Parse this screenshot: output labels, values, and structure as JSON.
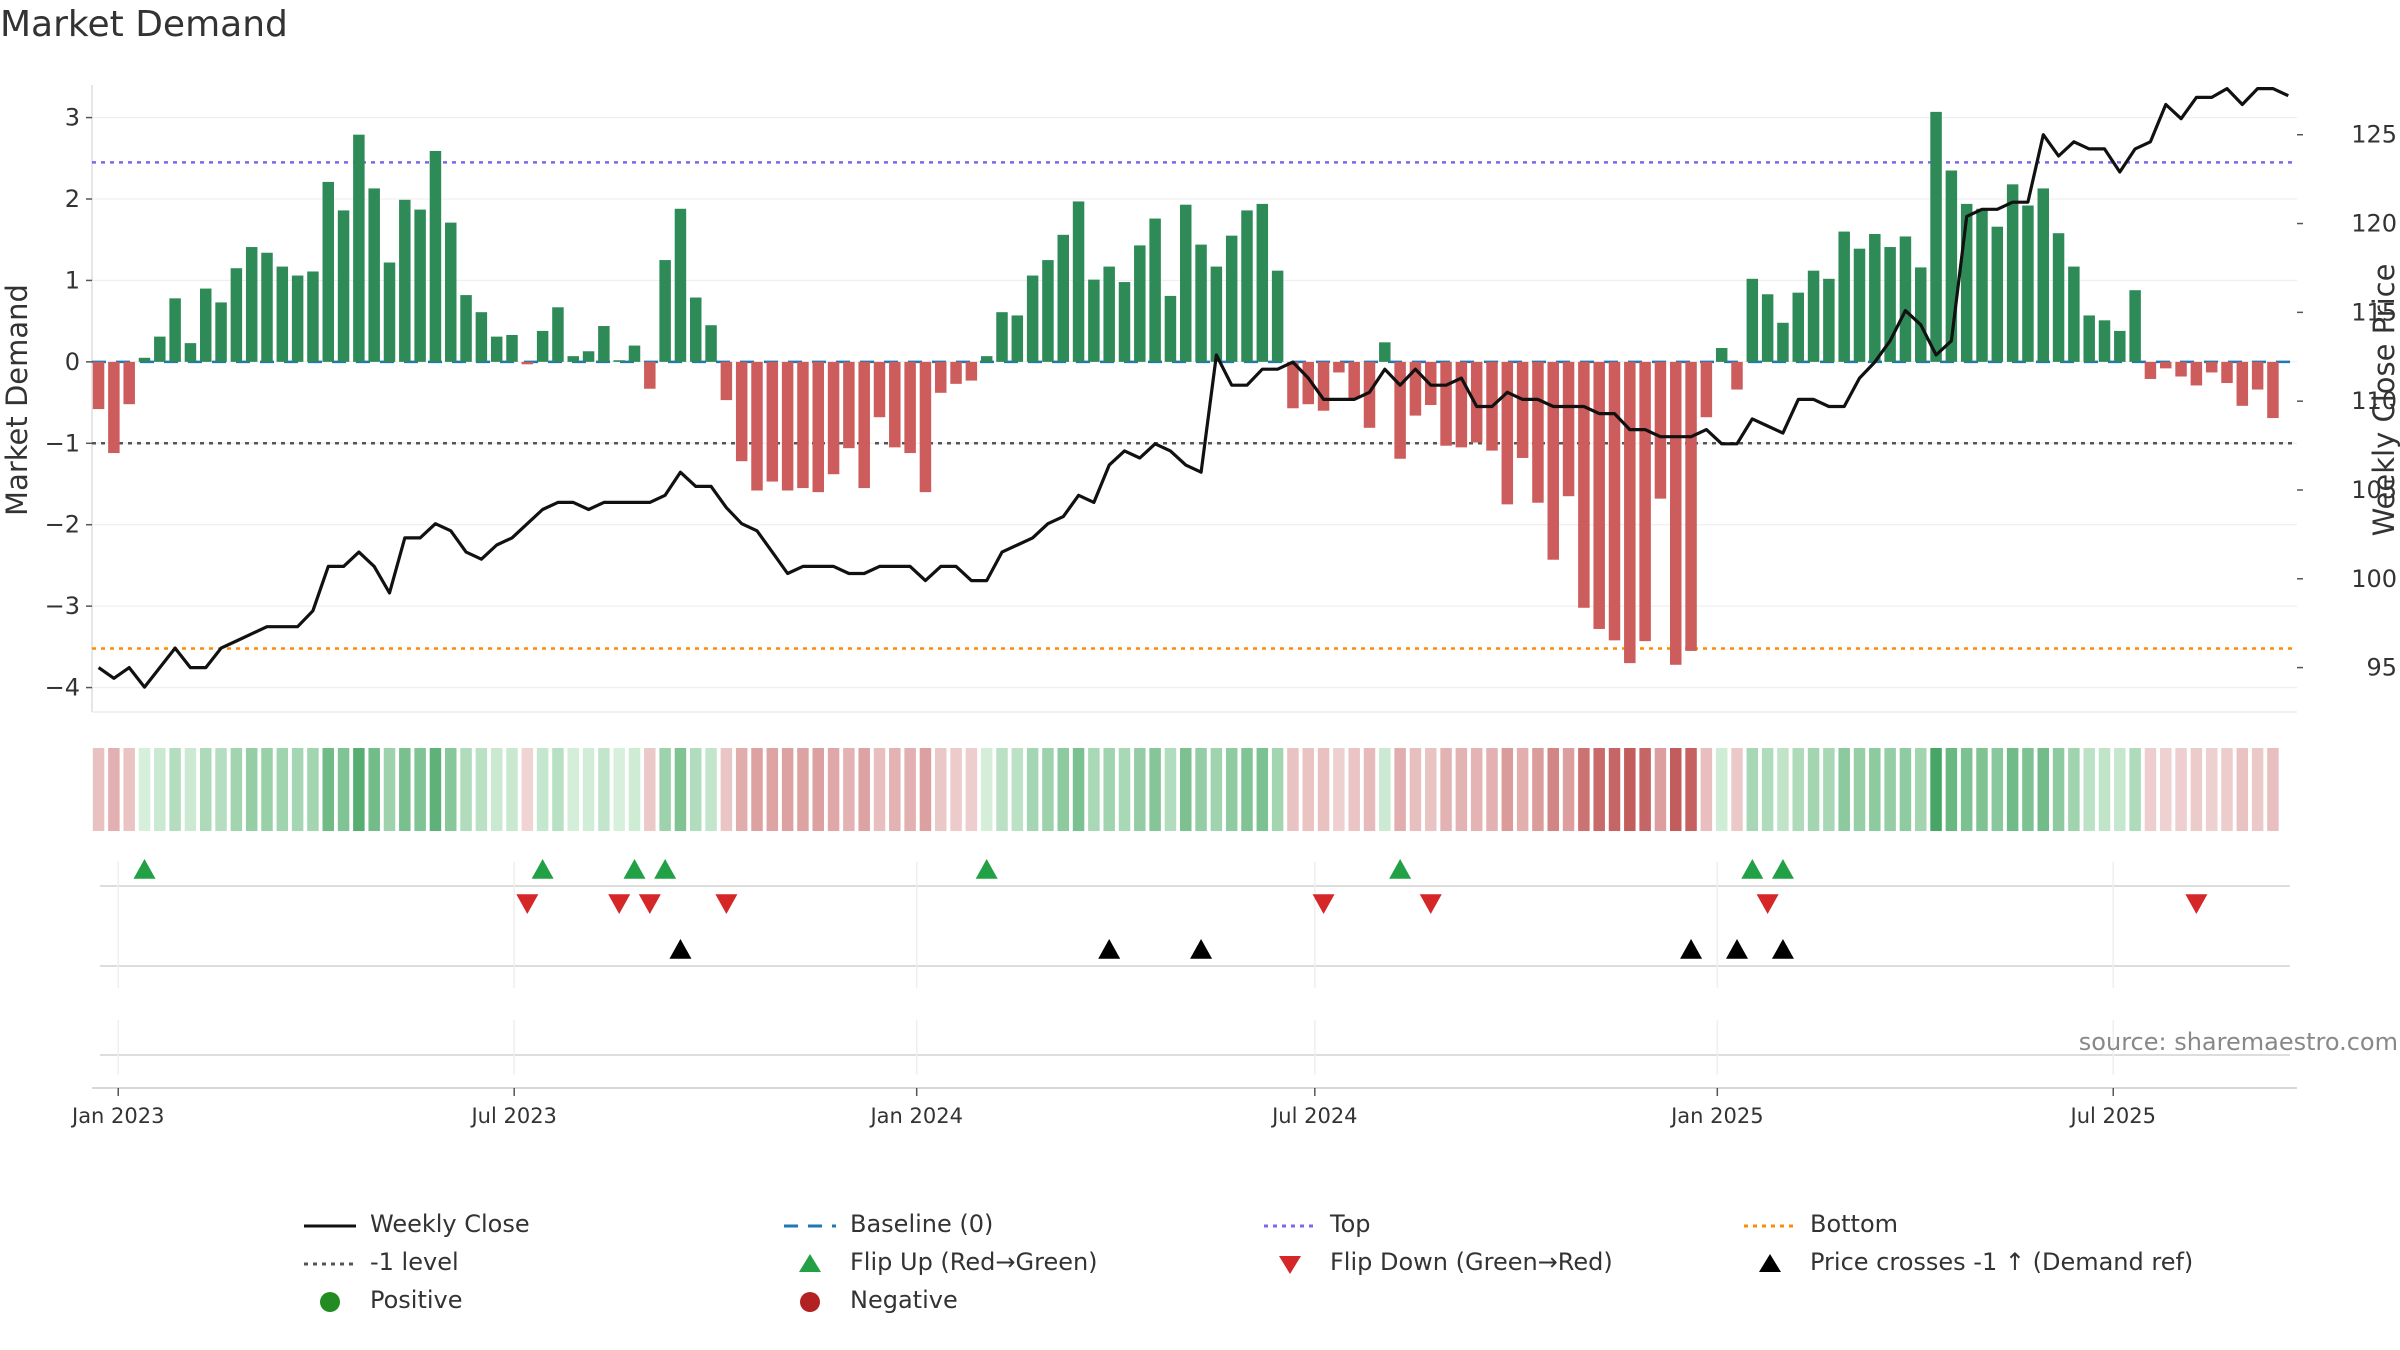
{
  "title": "Market Demand",
  "source": "source: sharemaestro.com",
  "colors": {
    "positive": "#2e8b57",
    "negative": "#cd5c5c",
    "price": "#111111",
    "baseline": "#1f77b4",
    "top": "#7b68ee",
    "bottom": "#ff8c00",
    "minus1": "#555555",
    "flip_up": "#22a046",
    "flip_down": "#d62728",
    "cross": "#000000"
  },
  "chart_data": {
    "type": "bar+line",
    "ylabel_left": "Market Demand",
    "ylabel_right": "Weekly Close Price",
    "left_ylim": [
      -4.3,
      3.4
    ],
    "left_ticks": [
      3,
      2,
      1,
      0,
      -1,
      -2,
      -3,
      -4
    ],
    "left_tick_labels": [
      "3",
      "2",
      "1",
      "0",
      "−1",
      "−2",
      "−3",
      "−4"
    ],
    "right_ylim": [
      92.5,
      127.8
    ],
    "right_ticks": [
      125,
      120,
      115,
      110,
      105,
      100,
      95
    ],
    "x_start": "2022-12-23",
    "week_days": 7,
    "x_ticks": [
      {
        "label": "Jan 2023",
        "day": 9
      },
      {
        "label": "Jul 2023",
        "day": 190
      },
      {
        "label": "Jan 2024",
        "day": 374
      },
      {
        "label": "Jul 2024",
        "day": 556
      },
      {
        "label": "Jan 2025",
        "day": 740
      },
      {
        "label": "Jul 2025",
        "day": 921
      }
    ],
    "reference_levels": {
      "top": 2.45,
      "bottom": -3.52,
      "baseline": 0,
      "minus1": -1
    },
    "demand": [
      -0.58,
      -1.12,
      -0.52,
      0.05,
      0.31,
      0.78,
      0.23,
      0.9,
      0.73,
      1.15,
      1.41,
      1.34,
      1.17,
      1.06,
      1.11,
      2.21,
      1.86,
      2.79,
      2.13,
      1.22,
      1.99,
      1.87,
      2.59,
      1.71,
      0.82,
      0.61,
      0.31,
      0.33,
      -0.03,
      0.38,
      0.67,
      0.07,
      0.13,
      0.44,
      0.02,
      0.2,
      -0.33,
      1.25,
      1.88,
      0.79,
      0.45,
      -0.47,
      -1.22,
      -1.58,
      -1.47,
      -1.58,
      -1.55,
      -1.6,
      -1.38,
      -1.06,
      -1.55,
      -0.68,
      -1.05,
      -1.12,
      -1.6,
      -0.38,
      -0.27,
      -0.23,
      0.07,
      0.61,
      0.57,
      1.06,
      1.25,
      1.56,
      1.97,
      1.01,
      1.17,
      0.98,
      1.43,
      1.76,
      0.81,
      1.93,
      1.44,
      1.17,
      1.55,
      1.86,
      1.94,
      1.12,
      -0.57,
      -0.52,
      -0.6,
      -0.13,
      -0.45,
      -0.81,
      0.24,
      -1.19,
      -0.66,
      -0.53,
      -1.03,
      -1.05,
      -0.99,
      -1.09,
      -1.75,
      -1.18,
      -1.73,
      -2.43,
      -1.65,
      -3.02,
      -3.28,
      -3.42,
      -3.7,
      -3.43,
      -1.68,
      -3.72,
      -3.55,
      -0.68,
      0.17,
      -0.34,
      1.02,
      0.83,
      0.48,
      0.85,
      1.12,
      1.02,
      1.6,
      1.39,
      1.57,
      1.41,
      1.54,
      1.16,
      3.07,
      2.35,
      1.94,
      1.88,
      1.66,
      2.18,
      1.92,
      2.13,
      1.58,
      1.17,
      0.57,
      0.51,
      0.38,
      0.88,
      -0.21,
      -0.08,
      -0.18,
      -0.29,
      -0.13,
      -0.26,
      -0.54,
      -0.34,
      -0.69
    ],
    "price": [
      95,
      94.4,
      95,
      93.9,
      95,
      96.1,
      95,
      95,
      96.1,
      96.5,
      96.9,
      97.3,
      97.3,
      97.3,
      98.2,
      100.7,
      100.7,
      101.5,
      100.7,
      99.2,
      102.3,
      102.3,
      103.1,
      102.7,
      101.5,
      101.1,
      101.9,
      102.3,
      103.1,
      103.9,
      104.3,
      104.3,
      103.9,
      104.3,
      104.3,
      104.3,
      104.3,
      104.7,
      106,
      105.2,
      105.2,
      104,
      103.1,
      102.7,
      101.5,
      100.3,
      100.7,
      100.7,
      100.7,
      100.3,
      100.3,
      100.7,
      100.7,
      100.7,
      99.9,
      100.7,
      100.7,
      99.9,
      99.9,
      101.5,
      101.9,
      102.3,
      103.1,
      103.5,
      104.7,
      104.3,
      106.4,
      107.2,
      106.8,
      107.6,
      107.2,
      106.4,
      106,
      112.6,
      110.9,
      110.9,
      111.8,
      111.8,
      112.2,
      111.3,
      110.1,
      110.1,
      110.1,
      110.5,
      111.8,
      110.9,
      111.8,
      110.9,
      110.9,
      111.3,
      109.7,
      109.7,
      110.5,
      110.1,
      110.1,
      109.7,
      109.7,
      109.7,
      109.3,
      109.3,
      108.4,
      108.4,
      108,
      108,
      108,
      108.4,
      107.6,
      107.6,
      109,
      108.6,
      108.2,
      110.1,
      110.1,
      109.7,
      109.7,
      111.3,
      112.2,
      113.4,
      115.1,
      114.3,
      112.6,
      113.4,
      120.4,
      120.8,
      120.8,
      121.2,
      121.2,
      125,
      123.8,
      124.6,
      124.2,
      124.2,
      122.9,
      124.2,
      124.6,
      126.7,
      125.9,
      127.1,
      127.1,
      127.6,
      126.7,
      127.6,
      127.6,
      127.2
    ],
    "flip_up_weeks": [
      3,
      29,
      35,
      37,
      58,
      85,
      108,
      110
    ],
    "flip_down_weeks": [
      28,
      34,
      36,
      41,
      80,
      87,
      109,
      137
    ],
    "cross_weeks": [
      38,
      66,
      72,
      104,
      107,
      110
    ]
  },
  "legend": [
    {
      "label": "Weekly Close",
      "symbol": "solid-line",
      "color": "#111111"
    },
    {
      "label": "Baseline (0)",
      "symbol": "dash-line",
      "color": "#1f77b4"
    },
    {
      "label": "Top",
      "symbol": "dot-line",
      "color": "#7b68ee"
    },
    {
      "label": "Bottom",
      "symbol": "dot-line",
      "color": "#ff8c00"
    },
    {
      "label": "-1 level",
      "symbol": "dot-line",
      "color": "#555555"
    },
    {
      "label": "Flip Up (Red→Green)",
      "symbol": "triangle-up",
      "color": "#22a046"
    },
    {
      "label": "Flip Down (Green→Red)",
      "symbol": "triangle-down",
      "color": "#d62728"
    },
    {
      "label": "Price crosses -1 ↑ (Demand ref)",
      "symbol": "triangle-up",
      "color": "#000000"
    },
    {
      "label": "Positive",
      "symbol": "circle",
      "color": "#228b22"
    },
    {
      "label": "Negative",
      "symbol": "circle",
      "color": "#b22222"
    }
  ]
}
